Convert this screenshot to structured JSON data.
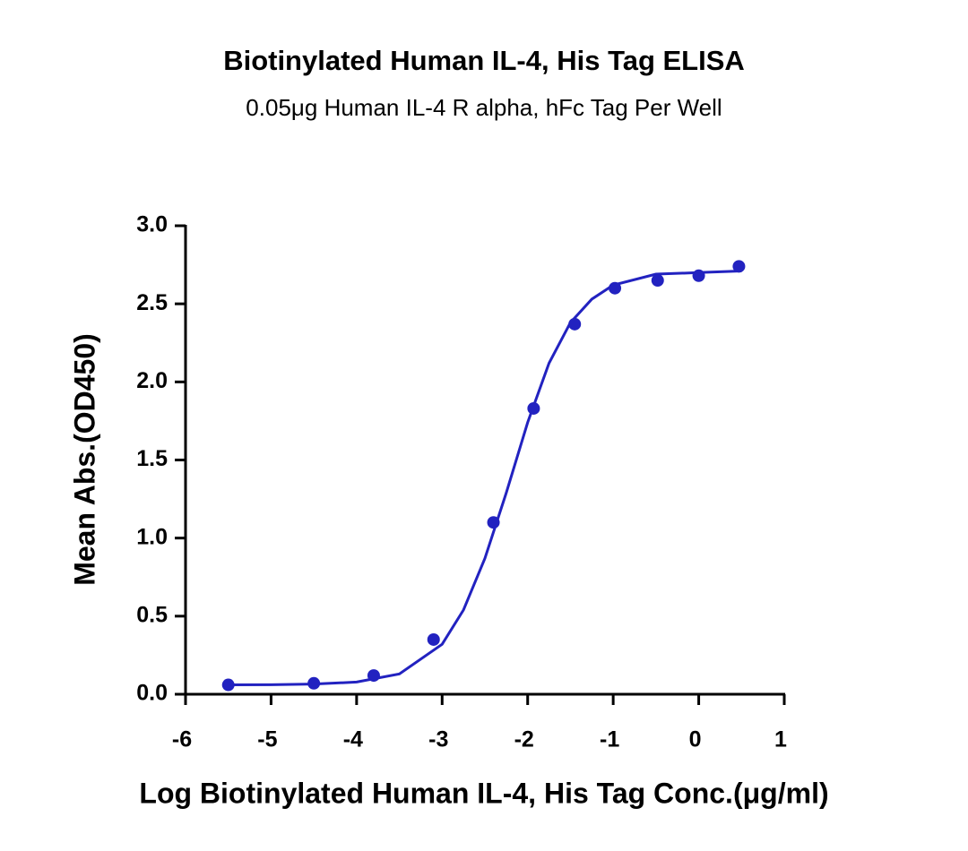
{
  "chart_data": {
    "type": "scatter",
    "title": "Biotinylated Human IL-4, His Tag ELISA",
    "subtitle": "0.05μg Human IL-4 R alpha, hFc Tag Per Well",
    "x_label": "Log Biotinylated Human IL-4, His Tag Conc.(μg/ml)",
    "y_label": "Mean Abs.(OD450)",
    "color": "#2222c0",
    "x": [
      -5.5,
      -4.5,
      -3.8,
      -3.1,
      -2.4,
      -1.93,
      -1.45,
      -0.98,
      -0.48,
      0,
      0.47
    ],
    "values": [
      0.06,
      0.07,
      0.12,
      0.35,
      1.1,
      1.83,
      2.37,
      2.6,
      2.65,
      2.68,
      2.74
    ],
    "fit_x": [
      -5.5,
      -5,
      -4.5,
      -4,
      -3.5,
      -3,
      -2.75,
      -2.5,
      -2.25,
      -2,
      -1.75,
      -1.5,
      -1.25,
      -1,
      -0.5,
      0,
      0.5
    ],
    "fit_values": [
      0.06,
      0.061,
      0.065,
      0.078,
      0.13,
      0.32,
      0.54,
      0.87,
      1.29,
      1.74,
      2.12,
      2.38,
      2.53,
      2.62,
      2.69,
      2.7,
      2.71
    ],
    "xlim": [
      -6,
      1
    ],
    "ylim": [
      0,
      3
    ],
    "xticks": [
      -6,
      -5,
      -4,
      -3,
      -2,
      -1,
      0,
      1
    ],
    "yticks": [
      {
        "value": 0,
        "label": "0.0"
      },
      {
        "value": 0.5,
        "label": "0.5"
      },
      {
        "value": 1,
        "label": "1.0"
      },
      {
        "value": 1.5,
        "label": "1.5"
      },
      {
        "value": 2,
        "label": "2.0"
      },
      {
        "value": 2.5,
        "label": "2.5"
      },
      {
        "value": 3,
        "label": "3.0"
      }
    ]
  }
}
